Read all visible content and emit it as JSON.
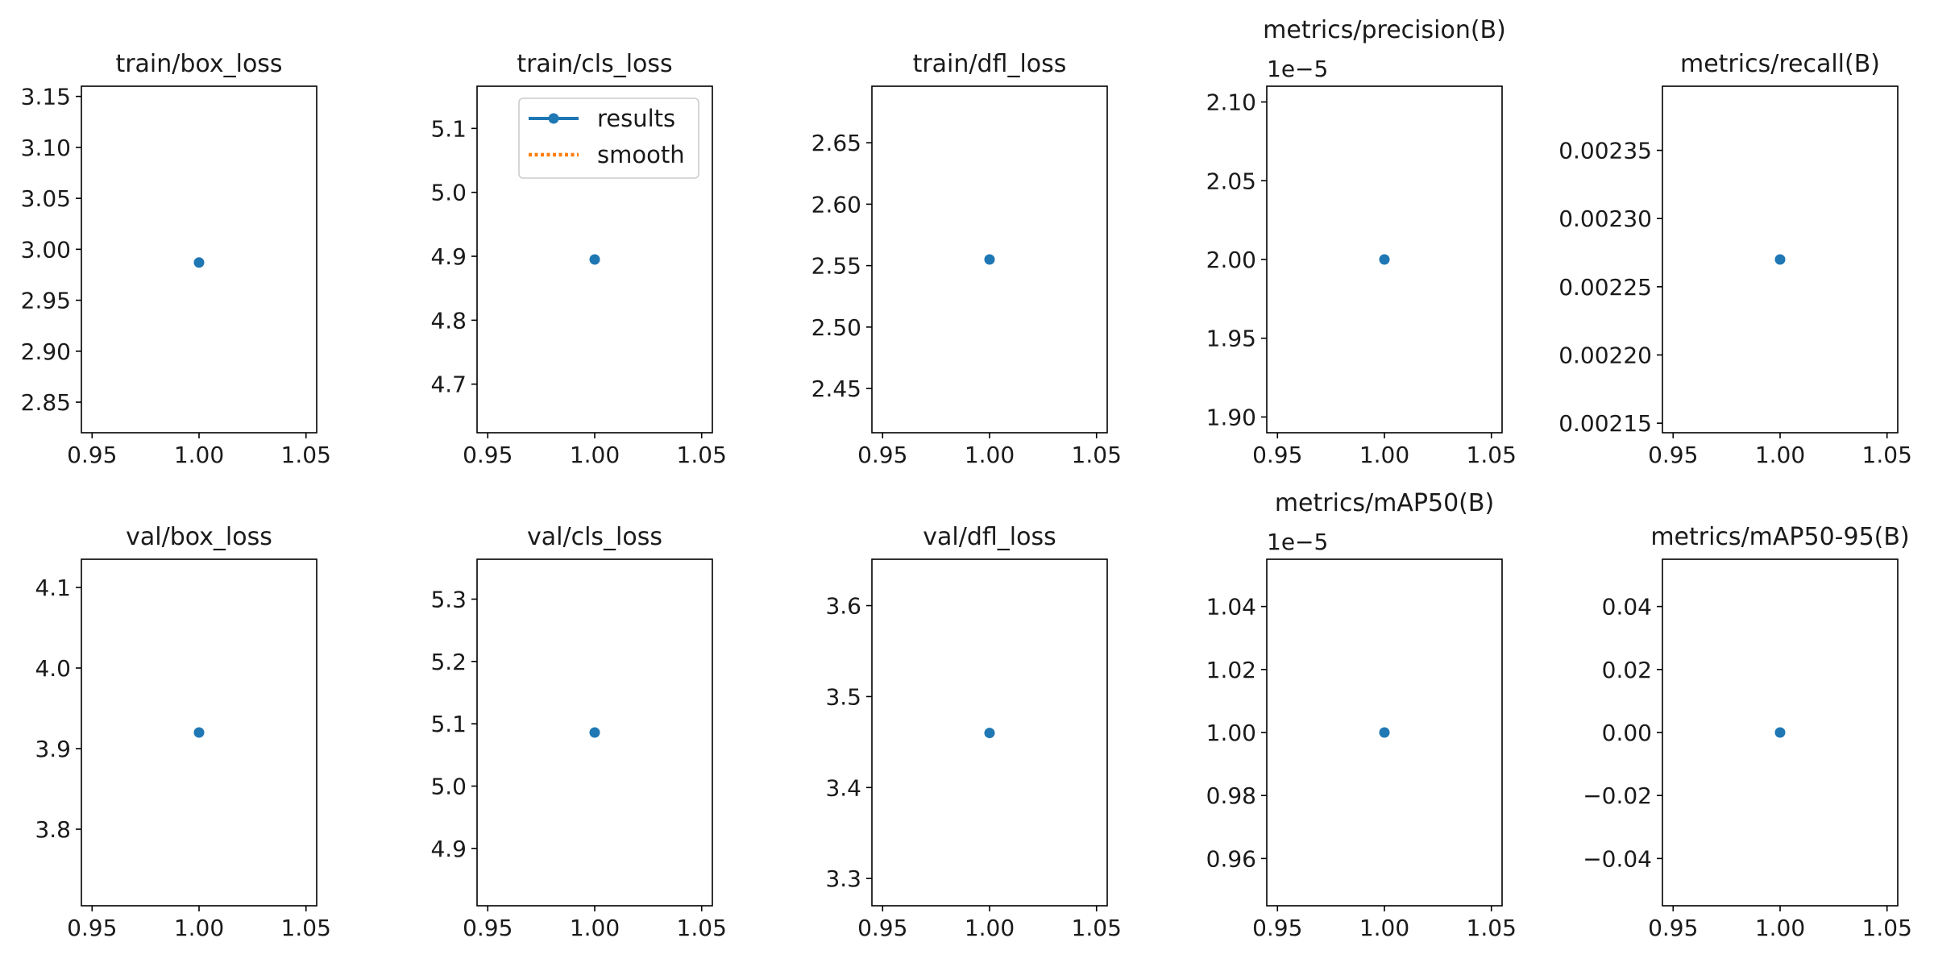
{
  "chart_data": [
    {
      "type": "line",
      "title": "train/box_loss",
      "xlabel": "",
      "ylabel": "",
      "xlim": [
        0.945,
        1.055
      ],
      "ylim": [
        2.82,
        3.16
      ],
      "xticks": [
        0.95,
        1.0,
        1.05
      ],
      "xtick_labels": [
        "0.95",
        "1.00",
        "1.05"
      ],
      "yticks": [
        2.85,
        2.9,
        2.95,
        3.0,
        3.05,
        3.1,
        3.15
      ],
      "ytick_labels": [
        "2.85",
        "2.90",
        "2.95",
        "3.00",
        "3.05",
        "3.10",
        "3.15"
      ],
      "y_offset_label": "",
      "series": [
        {
          "name": "results",
          "x": [
            1.0
          ],
          "y": [
            2.987
          ]
        },
        {
          "name": "smooth",
          "x": [],
          "y": []
        }
      ],
      "grid": false,
      "legend": ""
    },
    {
      "type": "line",
      "title": "train/cls_loss",
      "xlabel": "",
      "ylabel": "",
      "xlim": [
        0.945,
        1.055
      ],
      "ylim": [
        4.624,
        5.166
      ],
      "xticks": [
        0.95,
        1.0,
        1.05
      ],
      "xtick_labels": [
        "0.95",
        "1.00",
        "1.05"
      ],
      "yticks": [
        4.7,
        4.8,
        4.9,
        5.0,
        5.1
      ],
      "ytick_labels": [
        "4.7",
        "4.8",
        "4.9",
        "5.0",
        "5.1"
      ],
      "y_offset_label": "",
      "series": [
        {
          "name": "results",
          "x": [
            1.0
          ],
          "y": [
            4.895
          ]
        },
        {
          "name": "smooth",
          "x": [],
          "y": []
        }
      ],
      "grid": false,
      "legend": "upper right"
    },
    {
      "type": "line",
      "title": "train/dfl_loss",
      "xlabel": "",
      "ylabel": "",
      "xlim": [
        0.945,
        1.055
      ],
      "ylim": [
        2.414,
        2.696
      ],
      "xticks": [
        0.95,
        1.0,
        1.05
      ],
      "xtick_labels": [
        "0.95",
        "1.00",
        "1.05"
      ],
      "yticks": [
        2.45,
        2.5,
        2.55,
        2.6,
        2.65
      ],
      "ytick_labels": [
        "2.45",
        "2.50",
        "2.55",
        "2.60",
        "2.65"
      ],
      "y_offset_label": "",
      "series": [
        {
          "name": "results",
          "x": [
            1.0
          ],
          "y": [
            2.555
          ]
        },
        {
          "name": "smooth",
          "x": [],
          "y": []
        }
      ],
      "grid": false,
      "legend": ""
    },
    {
      "type": "line",
      "title": "metrics/precision(B)",
      "xlabel": "",
      "ylabel": "",
      "xlim": [
        0.945,
        1.055
      ],
      "ylim": [
        1.89,
        2.11
      ],
      "xticks": [
        0.95,
        1.0,
        1.05
      ],
      "xtick_labels": [
        "0.95",
        "1.00",
        "1.05"
      ],
      "yticks": [
        1.9,
        1.95,
        2.0,
        2.05,
        2.1
      ],
      "ytick_labels": [
        "1.90",
        "1.95",
        "2.00",
        "2.05",
        "2.10"
      ],
      "y_offset_label": "1e−5",
      "series": [
        {
          "name": "results",
          "x": [
            1.0
          ],
          "y": [
            2.0
          ]
        },
        {
          "name": "smooth",
          "x": [],
          "y": []
        }
      ],
      "grid": false,
      "legend": ""
    },
    {
      "type": "line",
      "title": "metrics/recall(B)",
      "xlabel": "",
      "ylabel": "",
      "xlim": [
        0.945,
        1.055
      ],
      "ylim": [
        0.002143,
        0.002397
      ],
      "xticks": [
        0.95,
        1.0,
        1.05
      ],
      "xtick_labels": [
        "0.95",
        "1.00",
        "1.05"
      ],
      "yticks": [
        0.00215,
        0.0022,
        0.00225,
        0.0023,
        0.00235
      ],
      "ytick_labels": [
        "0.00215",
        "0.00220",
        "0.00225",
        "0.00230",
        "0.00235"
      ],
      "y_offset_label": "",
      "series": [
        {
          "name": "results",
          "x": [
            1.0
          ],
          "y": [
            0.00227
          ]
        },
        {
          "name": "smooth",
          "x": [],
          "y": []
        }
      ],
      "grid": false,
      "legend": ""
    },
    {
      "type": "line",
      "title": "val/box_loss",
      "xlabel": "",
      "ylabel": "",
      "xlim": [
        0.945,
        1.055
      ],
      "ylim": [
        3.705,
        4.135
      ],
      "xticks": [
        0.95,
        1.0,
        1.05
      ],
      "xtick_labels": [
        "0.95",
        "1.00",
        "1.05"
      ],
      "yticks": [
        3.8,
        3.9,
        4.0,
        4.1
      ],
      "ytick_labels": [
        "3.8",
        "3.9",
        "4.0",
        "4.1"
      ],
      "y_offset_label": "",
      "series": [
        {
          "name": "results",
          "x": [
            1.0
          ],
          "y": [
            3.92
          ]
        },
        {
          "name": "smooth",
          "x": [],
          "y": []
        }
      ],
      "grid": false,
      "legend": ""
    },
    {
      "type": "line",
      "title": "val/cls_loss",
      "xlabel": "",
      "ylabel": "",
      "xlim": [
        0.945,
        1.055
      ],
      "ylim": [
        4.808,
        5.364
      ],
      "xticks": [
        0.95,
        1.0,
        1.05
      ],
      "xtick_labels": [
        "0.95",
        "1.00",
        "1.05"
      ],
      "yticks": [
        4.9,
        5.0,
        5.1,
        5.2,
        5.3
      ],
      "ytick_labels": [
        "4.9",
        "5.0",
        "5.1",
        "5.2",
        "5.3"
      ],
      "y_offset_label": "",
      "series": [
        {
          "name": "results",
          "x": [
            1.0
          ],
          "y": [
            5.086
          ]
        },
        {
          "name": "smooth",
          "x": [],
          "y": []
        }
      ],
      "grid": false,
      "legend": ""
    },
    {
      "type": "line",
      "title": "val/dfl_loss",
      "xlabel": "",
      "ylabel": "",
      "xlim": [
        0.945,
        1.055
      ],
      "ylim": [
        3.27,
        3.651
      ],
      "xticks": [
        0.95,
        1.0,
        1.05
      ],
      "xtick_labels": [
        "0.95",
        "1.00",
        "1.05"
      ],
      "yticks": [
        3.3,
        3.4,
        3.5,
        3.6
      ],
      "ytick_labels": [
        "3.3",
        "3.4",
        "3.5",
        "3.6"
      ],
      "y_offset_label": "",
      "series": [
        {
          "name": "results",
          "x": [
            1.0
          ],
          "y": [
            3.46
          ]
        },
        {
          "name": "smooth",
          "x": [],
          "y": []
        }
      ],
      "grid": false,
      "legend": ""
    },
    {
      "type": "line",
      "title": "metrics/mAP50(B)",
      "xlabel": "",
      "ylabel": "",
      "xlim": [
        0.945,
        1.055
      ],
      "ylim": [
        0.945,
        1.055
      ],
      "xticks": [
        0.95,
        1.0,
        1.05
      ],
      "xtick_labels": [
        "0.95",
        "1.00",
        "1.05"
      ],
      "yticks": [
        0.96,
        0.98,
        1.0,
        1.02,
        1.04
      ],
      "ytick_labels": [
        "0.96",
        "0.98",
        "1.00",
        "1.02",
        "1.04"
      ],
      "y_offset_label": "1e−5",
      "series": [
        {
          "name": "results",
          "x": [
            1.0
          ],
          "y": [
            1.0
          ]
        },
        {
          "name": "smooth",
          "x": [],
          "y": []
        }
      ],
      "grid": false,
      "legend": ""
    },
    {
      "type": "line",
      "title": "metrics/mAP50-95(B)",
      "xlabel": "",
      "ylabel": "",
      "xlim": [
        0.945,
        1.055
      ],
      "ylim": [
        -0.055,
        0.055
      ],
      "xticks": [
        0.95,
        1.0,
        1.05
      ],
      "xtick_labels": [
        "0.95",
        "1.00",
        "1.05"
      ],
      "yticks": [
        -0.04,
        -0.02,
        0.0,
        0.02,
        0.04
      ],
      "ytick_labels": [
        "−0.04",
        "−0.02",
        "0.00",
        "0.02",
        "0.04"
      ],
      "y_offset_label": "",
      "series": [
        {
          "name": "results",
          "x": [
            1.0
          ],
          "y": [
            0.0
          ]
        },
        {
          "name": "smooth",
          "x": [],
          "y": []
        }
      ],
      "grid": false,
      "legend": ""
    }
  ],
  "colors": {
    "results": "#1f77b4",
    "smooth": "#ff7f0e",
    "axes": "#000000",
    "background": "#ffffff"
  }
}
